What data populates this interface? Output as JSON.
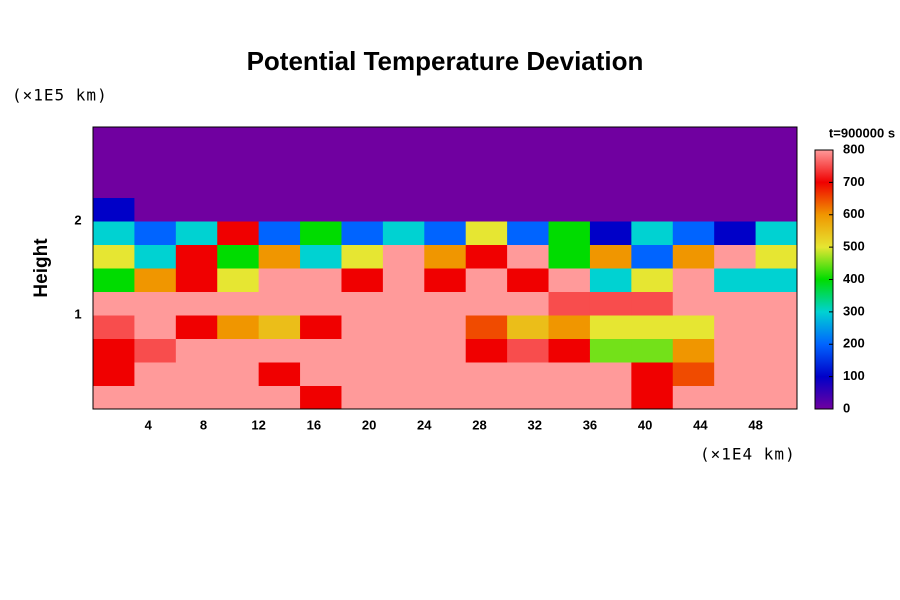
{
  "chart_data": {
    "type": "heatmap",
    "title": "Potential Temperature Deviation",
    "ylabel": "Height",
    "yunit": "(×1E5 km)",
    "xunit": "(×1E4 km)",
    "colorbar_title": "t=900000 s",
    "xlim": [
      0,
      51
    ],
    "ylim": [
      0,
      3
    ],
    "zlim": [
      0,
      800
    ],
    "xticks": [
      4,
      8,
      12,
      16,
      20,
      24,
      28,
      32,
      36,
      40,
      44,
      48
    ],
    "yticks": [
      1,
      2
    ],
    "zticks": [
      0,
      100,
      200,
      300,
      400,
      500,
      600,
      700,
      800
    ],
    "colormap": [
      "#7000a0",
      "#0000c8",
      "#0064ff",
      "#00d2d2",
      "#00dc00",
      "#e6e632",
      "#f09600",
      "#f00000",
      "#ff9a9a"
    ],
    "x": [
      0,
      3,
      6,
      9,
      12,
      15,
      18,
      21,
      24,
      27,
      30,
      33,
      36,
      39,
      42,
      45,
      48,
      51
    ],
    "y": [
      0,
      0.25,
      0.5,
      0.75,
      1,
      1.25,
      1.5,
      1.75,
      2,
      2.25,
      2.5,
      2.75,
      3
    ],
    "z": [
      [
        800,
        800,
        800,
        800,
        800,
        700,
        800,
        800,
        800,
        800,
        800,
        800,
        800,
        700,
        800,
        800,
        800
      ],
      [
        700,
        800,
        800,
        800,
        700,
        800,
        800,
        800,
        800,
        800,
        800,
        800,
        800,
        700,
        650,
        800,
        800
      ],
      [
        700,
        750,
        800,
        800,
        800,
        800,
        800,
        800,
        800,
        700,
        750,
        700,
        450,
        450,
        600,
        800,
        800
      ],
      [
        750,
        800,
        700,
        600,
        550,
        700,
        800,
        800,
        800,
        650,
        550,
        600,
        500,
        500,
        500,
        800,
        800
      ],
      [
        800,
        800,
        800,
        800,
        800,
        800,
        800,
        800,
        800,
        800,
        800,
        750,
        750,
        750,
        800,
        800,
        800
      ],
      [
        400,
        600,
        700,
        500,
        800,
        800,
        700,
        800,
        700,
        800,
        700,
        800,
        300,
        500,
        800,
        300,
        300
      ],
      [
        500,
        300,
        700,
        400,
        600,
        300,
        500,
        800,
        600,
        700,
        800,
        400,
        600,
        200,
        600,
        800,
        500
      ],
      [
        300,
        200,
        300,
        700,
        200,
        400,
        200,
        300,
        200,
        500,
        200,
        400,
        100,
        300,
        200,
        100,
        300
      ],
      [
        100,
        0,
        0,
        0,
        0,
        0,
        0,
        0,
        0,
        0,
        0,
        0,
        0,
        0,
        0,
        0,
        0
      ],
      [
        0,
        0,
        0,
        0,
        0,
        0,
        0,
        0,
        0,
        0,
        0,
        0,
        0,
        0,
        0,
        0,
        0
      ],
      [
        0,
        0,
        0,
        0,
        0,
        0,
        0,
        0,
        0,
        0,
        0,
        0,
        0,
        0,
        0,
        0,
        0
      ],
      [
        0,
        0,
        0,
        0,
        0,
        0,
        0,
        0,
        0,
        0,
        0,
        0,
        0,
        0,
        0,
        0,
        0
      ]
    ]
  }
}
